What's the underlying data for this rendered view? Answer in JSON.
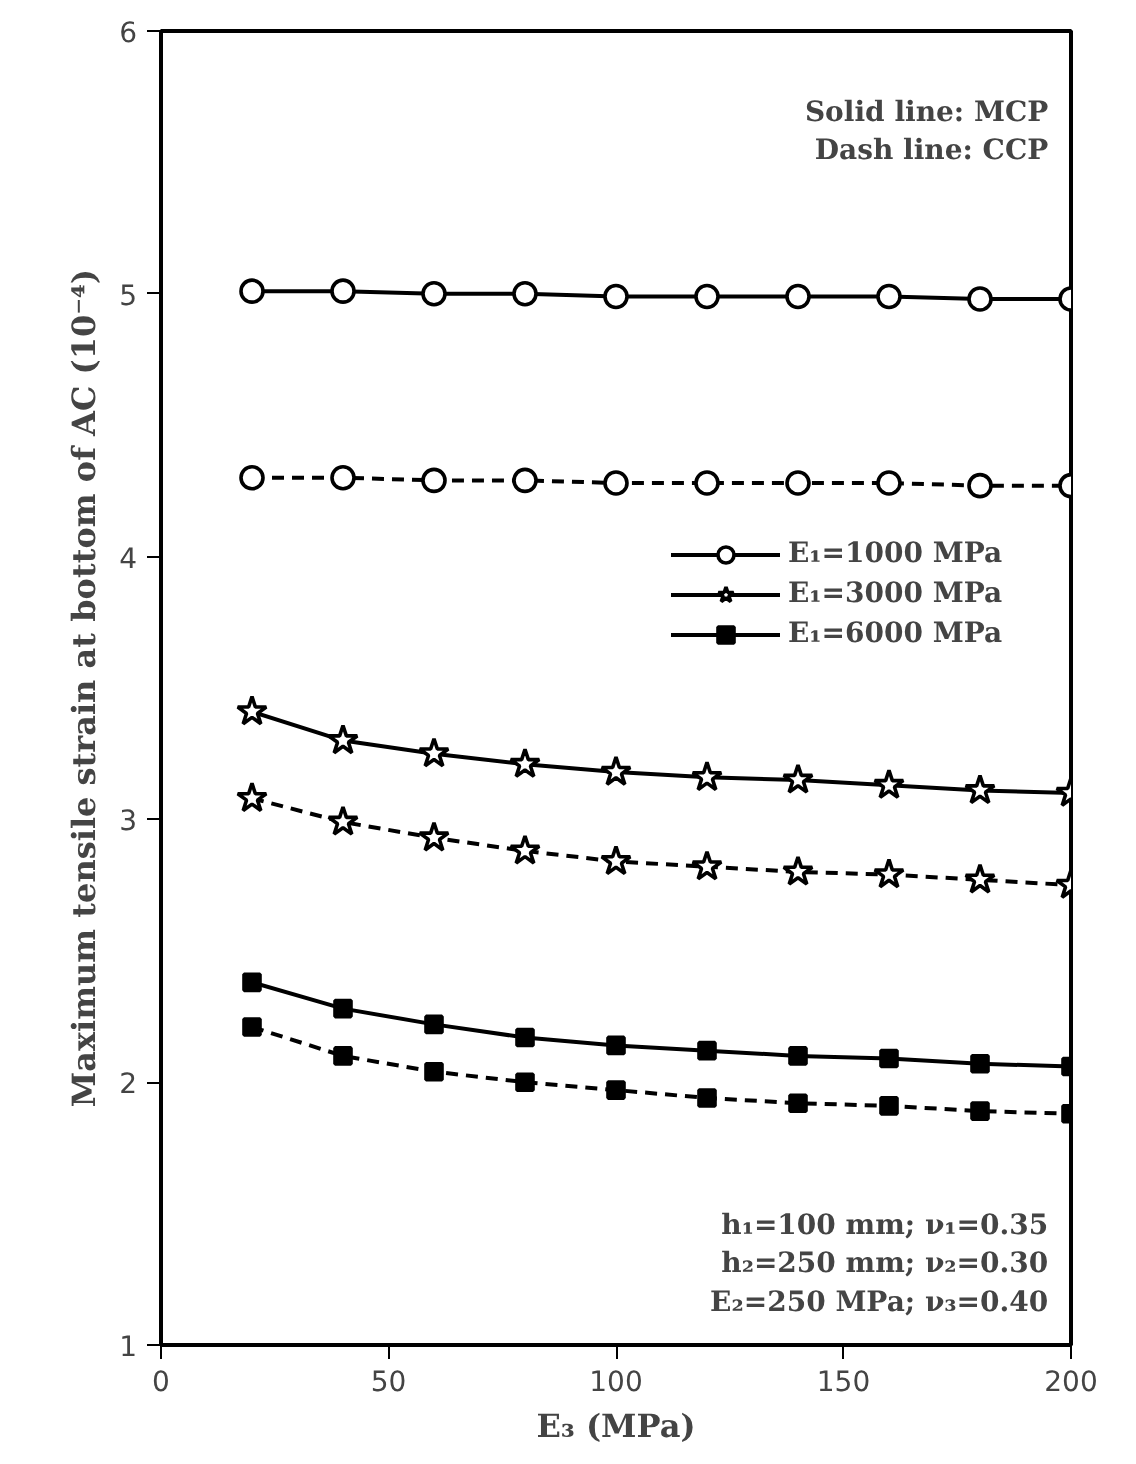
{
  "chart_data": {
    "type": "line",
    "xlabel": "E₃ (MPa)",
    "ylabel": "Maximum tensile strain at bottom of AC (10⁻⁴)",
    "x": [
      20,
      40,
      60,
      80,
      100,
      120,
      140,
      160,
      180,
      200
    ],
    "series": [
      {
        "name": "E₁=1000 MPa",
        "color": "#000000",
        "marker": "circle",
        "line_style": "solid",
        "values": [
          5.01,
          5.01,
          5.0,
          5.0,
          4.99,
          4.99,
          4.99,
          4.99,
          4.98,
          4.98
        ]
      },
      {
        "color": "#000000",
        "marker": "circle",
        "line_style": "dashed",
        "values": [
          4.3,
          4.3,
          4.29,
          4.29,
          4.28,
          4.28,
          4.28,
          4.28,
          4.27,
          4.27
        ]
      },
      {
        "name": "E₁=3000 MPa",
        "color": "#000000",
        "marker": "star",
        "line_style": "solid",
        "values": [
          3.41,
          3.3,
          3.25,
          3.21,
          3.18,
          3.16,
          3.15,
          3.13,
          3.11,
          3.1
        ]
      },
      {
        "color": "#000000",
        "marker": "star",
        "line_style": "dashed",
        "values": [
          3.08,
          2.99,
          2.93,
          2.88,
          2.84,
          2.82,
          2.8,
          2.79,
          2.77,
          2.75
        ]
      },
      {
        "name": "E₁=6000 MPa",
        "color": "#000000",
        "marker": "square",
        "line_style": "solid",
        "values": [
          2.38,
          2.28,
          2.22,
          2.17,
          2.14,
          2.12,
          2.1,
          2.09,
          2.07,
          2.06
        ]
      },
      {
        "color": "#000000",
        "marker": "square",
        "line_style": "dashed",
        "values": [
          2.21,
          2.1,
          2.04,
          2.0,
          1.97,
          1.94,
          1.92,
          1.91,
          1.89,
          1.88
        ]
      }
    ],
    "xlim": [
      0,
      200
    ],
    "xticks": [
      0,
      50,
      100,
      150,
      200
    ],
    "ylim": [
      1,
      6
    ],
    "yticks": [
      1,
      2,
      3,
      4,
      5,
      6
    ],
    "grid": false,
    "legend": "right",
    "annotations": [
      "Solid line: MCP\nDash line: CCP",
      "h₁=100 mm; ν₁=0.35\nh₂=250 mm; ν₂=0.30\nE₂=250 MPa; ν₃=0.40"
    ]
  }
}
